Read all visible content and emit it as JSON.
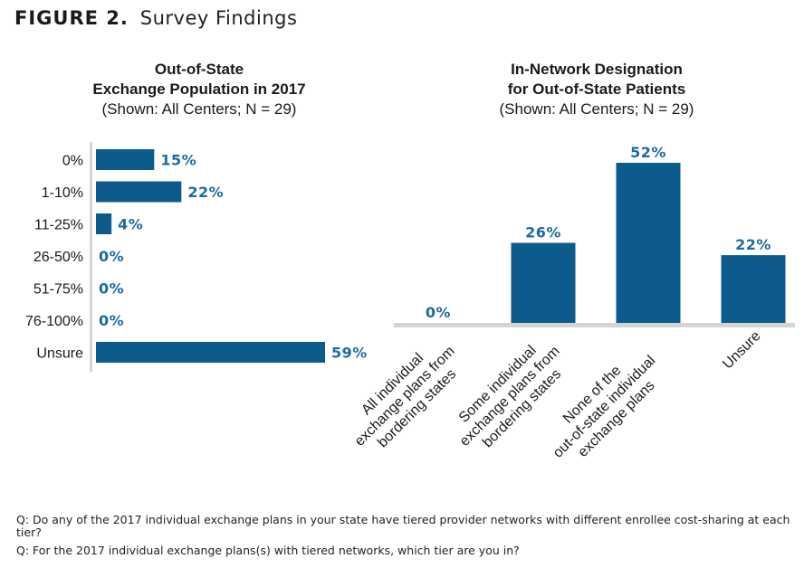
{
  "figure": {
    "number": "FIGURE 2.",
    "title": "Survey Findings"
  },
  "colors": {
    "bar": "#0d5a8c",
    "value_label": "#1f6aa0",
    "axis": "#d4d4d6",
    "text": "#1a1a1a"
  },
  "chart_data": [
    {
      "type": "bar",
      "orientation": "horizontal",
      "title": "Out-of-State Exchange Population in 2017",
      "title_lines": [
        "Out-of-State",
        "Exchange Population in 2017"
      ],
      "subtitle": "(Shown: All Centers; N = 29)",
      "categories": [
        "0%",
        "1-10%",
        "11-25%",
        "26-50%",
        "51-75%",
        "76-100%",
        "Unsure"
      ],
      "values": [
        15,
        22,
        4,
        0,
        0,
        0,
        59
      ],
      "value_labels": [
        "15%",
        "22%",
        "4%",
        "0%",
        "0%",
        "0%",
        "59%"
      ],
      "xlabel": "",
      "ylabel": "",
      "xlim": [
        0,
        60
      ],
      "unit": "%",
      "grid": false,
      "legend": "none"
    },
    {
      "type": "bar",
      "orientation": "vertical",
      "title": "In-Network Designation for Out-of-State Patients",
      "title_lines": [
        "In-Network Designation",
        "for Out-of-State Patients"
      ],
      "subtitle": "(Shown: All Centers; N = 29)",
      "categories": [
        "All individual exchange plans from bordering states",
        "Some individual exchange plans from bordering states",
        "None of the out-of-state individual exchange plans",
        "Unsure"
      ],
      "category_lines": [
        [
          "All individual",
          "exchange plans from",
          "bordering states"
        ],
        [
          "Some individual",
          "exchange plans from",
          "bordering states"
        ],
        [
          "None of the",
          "out-of-state individual",
          "exchange plans"
        ],
        [
          "Unsure"
        ]
      ],
      "values": [
        0,
        26,
        52,
        22
      ],
      "value_labels": [
        "0%",
        "26%",
        "52%",
        "22%"
      ],
      "xlabel": "",
      "ylabel": "",
      "ylim": [
        0,
        60
      ],
      "unit": "%",
      "grid": false,
      "legend": "none"
    }
  ],
  "footer": {
    "questions": [
      "Q: Do any of the 2017 individual exchange plans in your state have tiered provider networks with different enrollee cost-sharing at each tier?",
      "Q: For the 2017 individual exchange plans(s) with tiered networks, which tier are you in?"
    ]
  }
}
